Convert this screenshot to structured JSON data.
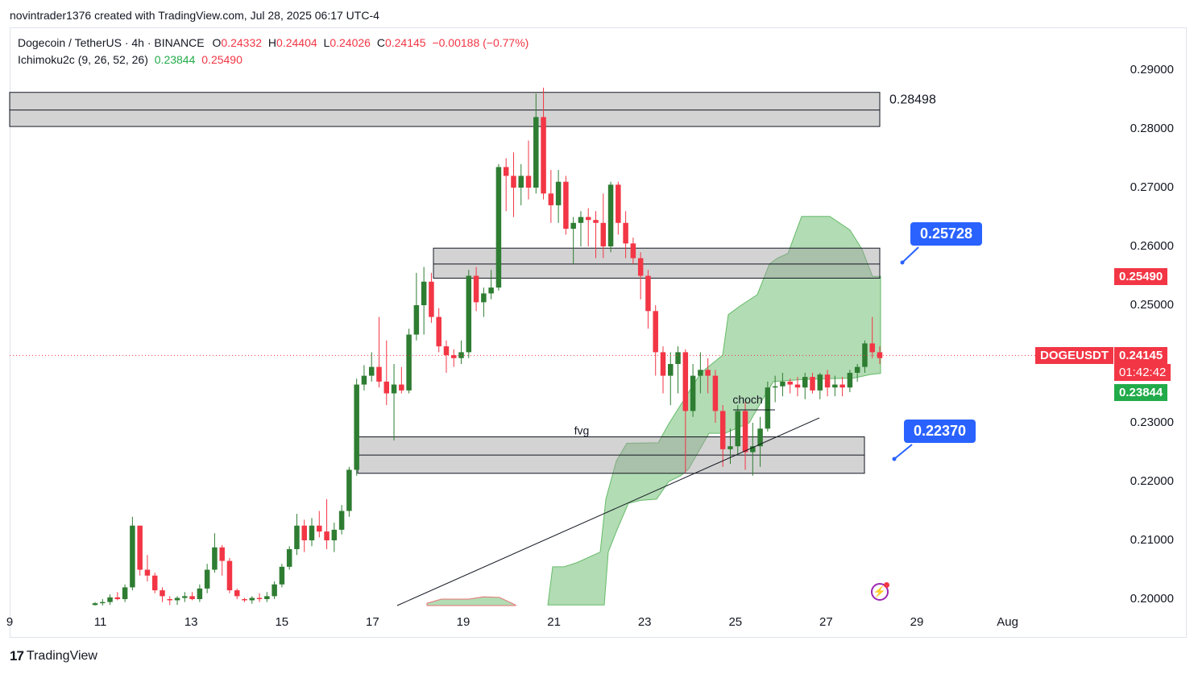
{
  "attribution": "novintrader1376 created with TradingView.com, Jul 28, 2025 06:17 UTC-4",
  "legend": {
    "symbol": "Dogecoin / TetherUS · 4h · BINANCE",
    "o_label": "O",
    "o": "0.24332",
    "h_label": "H",
    "h": "0.24404",
    "l_label": "L",
    "l": "0.24026",
    "c_label": "C",
    "c": "0.24145",
    "change": "−0.00188 (−0.77%)",
    "indicator": "Ichimoku2c (9, 26, 52, 26)",
    "ind_v1": "0.23844",
    "ind_v2": "0.25490"
  },
  "chart_data": {
    "type": "candlestick",
    "symbol": "DOGEUSDT",
    "ylim": [
      0.198,
      0.2962
    ],
    "y_ticks": [
      "0.29000",
      "0.28000",
      "0.27000",
      "0.26000",
      "0.25000",
      "0.23000",
      "0.22000",
      "0.21000",
      "0.20000"
    ],
    "x_ticks": [
      "9",
      "11",
      "13",
      "15",
      "17",
      "19",
      "21",
      "23",
      "25",
      "27",
      "29",
      "Aug"
    ],
    "last_price": "0.24145",
    "countdown": "01:42:42",
    "symbol_tag": "DOGEUSDT",
    "ichimoku_tag_a": "0.25490",
    "ichimoku_tag_b": "0.23844",
    "zones": [
      {
        "top": 0.2862,
        "bottom": 0.2804,
        "mid": 0.2832,
        "label": "0.28498"
      },
      {
        "top": 0.2597,
        "bottom": 0.2546,
        "mid": 0.257,
        "label": ""
      },
      {
        "top": 0.2276,
        "bottom": 0.2214,
        "mid": 0.2245,
        "label": "fvg"
      }
    ],
    "annotations": [
      "choch",
      "fvg"
    ],
    "callouts": [
      "0.25728",
      "0.22370"
    ],
    "candles_sample_ohlc_note": "approximate",
    "candles": [
      [
        0.199,
        0.1995,
        0.1985,
        0.1993
      ],
      [
        0.1993,
        0.2,
        0.1988,
        0.1995
      ],
      [
        0.1995,
        0.2008,
        0.199,
        0.2003
      ],
      [
        0.2003,
        0.2012,
        0.1998,
        0.2
      ],
      [
        0.2,
        0.2025,
        0.1995,
        0.202
      ],
      [
        0.202,
        0.214,
        0.2015,
        0.2125
      ],
      [
        0.2125,
        0.2125,
        0.204,
        0.205
      ],
      [
        0.205,
        0.2075,
        0.203,
        0.204
      ],
      [
        0.204,
        0.2045,
        0.201,
        0.2015
      ],
      [
        0.2015,
        0.202,
        0.1995,
        0.2005
      ],
      [
        0.2,
        0.2005,
        0.199,
        0.1998
      ],
      [
        0.1998,
        0.2005,
        0.199,
        0.2002
      ],
      [
        0.2002,
        0.2012,
        0.1995,
        0.2005
      ],
      [
        0.2005,
        0.2012,
        0.1998,
        0.2
      ],
      [
        0.2,
        0.2025,
        0.1995,
        0.2018
      ],
      [
        0.2018,
        0.206,
        0.201,
        0.205
      ],
      [
        0.205,
        0.2112,
        0.2045,
        0.2088
      ],
      [
        0.2088,
        0.2092,
        0.204,
        0.2065
      ],
      [
        0.2065,
        0.207,
        0.201,
        0.2015
      ],
      [
        0.2015,
        0.2018,
        0.2,
        0.2005
      ],
      [
        0.2,
        0.2002,
        0.1995,
        0.1998
      ],
      [
        0.1998,
        0.2005,
        0.1992,
        0.2002
      ],
      [
        0.2002,
        0.201,
        0.1995,
        0.2
      ],
      [
        0.2,
        0.2012,
        0.1995,
        0.2005
      ],
      [
        0.2005,
        0.203,
        0.2,
        0.2025
      ],
      [
        0.2025,
        0.206,
        0.202,
        0.2055
      ],
      [
        0.2055,
        0.209,
        0.205,
        0.2085
      ],
      [
        0.2085,
        0.2145,
        0.2075,
        0.2125
      ],
      [
        0.2125,
        0.2135,
        0.208,
        0.21
      ],
      [
        0.21,
        0.2138,
        0.209,
        0.2125
      ],
      [
        0.2125,
        0.215,
        0.2105,
        0.2115
      ],
      [
        0.2115,
        0.217,
        0.2085,
        0.21
      ],
      [
        0.21,
        0.213,
        0.208,
        0.2118
      ],
      [
        0.2118,
        0.216,
        0.211,
        0.215
      ],
      [
        0.215,
        0.2225,
        0.214,
        0.222
      ],
      [
        0.222,
        0.2375,
        0.221,
        0.2365
      ],
      [
        0.2365,
        0.2398,
        0.2355,
        0.238
      ],
      [
        0.238,
        0.242,
        0.237,
        0.2395
      ],
      [
        0.2395,
        0.248,
        0.236,
        0.237
      ],
      [
        0.237,
        0.244,
        0.233,
        0.235
      ],
      [
        0.235,
        0.24,
        0.227,
        0.2365
      ],
      [
        0.2365,
        0.2395,
        0.235,
        0.2355
      ],
      [
        0.2355,
        0.246,
        0.235,
        0.245
      ],
      [
        0.245,
        0.2555,
        0.244,
        0.25
      ],
      [
        0.25,
        0.2565,
        0.245,
        0.254
      ],
      [
        0.254,
        0.2555,
        0.247,
        0.248
      ],
      [
        0.248,
        0.2495,
        0.242,
        0.243
      ],
      [
        0.243,
        0.244,
        0.2385,
        0.2415
      ],
      [
        0.2415,
        0.2425,
        0.2395,
        0.241
      ],
      [
        0.241,
        0.244,
        0.24,
        0.242
      ],
      [
        0.242,
        0.256,
        0.241,
        0.255
      ],
      [
        0.255,
        0.2565,
        0.249,
        0.2505
      ],
      [
        0.2505,
        0.253,
        0.248,
        0.252
      ],
      [
        0.252,
        0.256,
        0.251,
        0.253
      ],
      [
        0.253,
        0.274,
        0.2525,
        0.2735
      ],
      [
        0.2735,
        0.275,
        0.266,
        0.272
      ],
      [
        0.272,
        0.276,
        0.265,
        0.27
      ],
      [
        0.27,
        0.274,
        0.267,
        0.272
      ],
      [
        0.272,
        0.278,
        0.268,
        0.27
      ],
      [
        0.27,
        0.286,
        0.269,
        0.282
      ],
      [
        0.282,
        0.287,
        0.268,
        0.269
      ],
      [
        0.269,
        0.273,
        0.264,
        0.267
      ],
      [
        0.267,
        0.273,
        0.264,
        0.271
      ],
      [
        0.271,
        0.272,
        0.262,
        0.263
      ],
      [
        0.263,
        0.265,
        0.257,
        0.264
      ],
      [
        0.264,
        0.266,
        0.26,
        0.265
      ],
      [
        0.265,
        0.2665,
        0.26,
        0.2645
      ],
      [
        0.2645,
        0.266,
        0.258,
        0.264
      ],
      [
        0.264,
        0.269,
        0.258,
        0.26
      ],
      [
        0.26,
        0.271,
        0.259,
        0.2705
      ],
      [
        0.2705,
        0.271,
        0.262,
        0.264
      ],
      [
        0.264,
        0.266,
        0.258,
        0.2605
      ],
      [
        0.2605,
        0.2615,
        0.257,
        0.258
      ],
      [
        0.258,
        0.259,
        0.251,
        0.255
      ],
      [
        0.255,
        0.256,
        0.246,
        0.249
      ],
      [
        0.249,
        0.25,
        0.238,
        0.242
      ],
      [
        0.242,
        0.243,
        0.235,
        0.238
      ],
      [
        0.238,
        0.242,
        0.233,
        0.24
      ],
      [
        0.24,
        0.243,
        0.235,
        0.242
      ],
      [
        0.242,
        0.2425,
        0.2215,
        0.232
      ],
      [
        0.232,
        0.24,
        0.231,
        0.238
      ],
      [
        0.238,
        0.242,
        0.235,
        0.239
      ],
      [
        0.239,
        0.241,
        0.235,
        0.238
      ],
      [
        0.238,
        0.239,
        0.23,
        0.232
      ],
      [
        0.232,
        0.233,
        0.2225,
        0.2255
      ],
      [
        0.2255,
        0.229,
        0.223,
        0.226
      ],
      [
        0.226,
        0.233,
        0.2245,
        0.232
      ],
      [
        0.232,
        0.2335,
        0.222,
        0.225
      ],
      [
        0.225,
        0.23,
        0.221,
        0.226
      ],
      [
        0.226,
        0.231,
        0.2225,
        0.229
      ],
      [
        0.229,
        0.237,
        0.2285,
        0.236
      ],
      [
        0.236,
        0.238,
        0.2335,
        0.2362
      ],
      [
        0.2362,
        0.2385,
        0.2345,
        0.237
      ],
      [
        0.237,
        0.2375,
        0.235,
        0.2365
      ],
      [
        0.2365,
        0.2378,
        0.2345,
        0.236
      ],
      [
        0.236,
        0.2385,
        0.234,
        0.2378
      ],
      [
        0.2378,
        0.2385,
        0.235,
        0.2355
      ],
      [
        0.2355,
        0.2385,
        0.234,
        0.2382
      ],
      [
        0.2382,
        0.239,
        0.2345,
        0.236
      ],
      [
        0.236,
        0.238,
        0.2345,
        0.2365
      ],
      [
        0.2365,
        0.2378,
        0.2345,
        0.236
      ],
      [
        0.236,
        0.239,
        0.2352,
        0.2385
      ],
      [
        0.2385,
        0.24,
        0.237,
        0.2395
      ],
      [
        0.2395,
        0.244,
        0.2385,
        0.2435
      ],
      [
        0.2435,
        0.248,
        0.241,
        0.242
      ],
      [
        0.242,
        0.243,
        0.24,
        0.241
      ]
    ]
  },
  "footer": {
    "brand": "TradingView",
    "logo": "17"
  }
}
